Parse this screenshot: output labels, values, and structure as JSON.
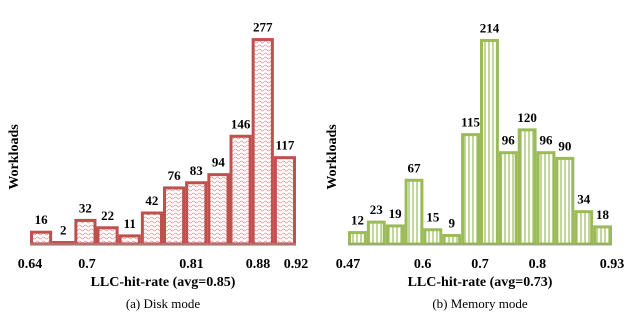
{
  "chart_data": [
    {
      "type": "histogram",
      "caption": "(a) Disk mode",
      "xlabel": "LLC-hit-rate (avg=0.85)",
      "ylabel": "Workloads",
      "color": "#c0504d",
      "pattern": "wave",
      "bins": [
        0.64,
        0.6633,
        0.6867,
        0.71,
        0.7333,
        0.7567,
        0.78,
        0.8033,
        0.8267,
        0.85,
        0.8733,
        0.8967,
        0.92
      ],
      "values": [
        16,
        2,
        32,
        22,
        11,
        42,
        76,
        83,
        94,
        146,
        277,
        117
      ],
      "xlim": [
        0.64,
        0.92
      ],
      "xticks": [
        0.64,
        0.7,
        0.81,
        0.88,
        0.92
      ],
      "ylim": [
        0,
        290
      ]
    },
    {
      "type": "histogram",
      "caption": "(b) Memory mode",
      "xlabel": "LLC-hit-rate (avg=0.73)",
      "ylabel": "Workloads",
      "color": "#9bbb59",
      "pattern": "stripes",
      "bins": [
        0.47,
        0.5029,
        0.5357,
        0.5686,
        0.6014,
        0.6343,
        0.6671,
        0.7,
        0.7329,
        0.7657,
        0.7986,
        0.8314,
        0.8643,
        0.8971,
        0.93
      ],
      "values": [
        12,
        23,
        19,
        67,
        15,
        9,
        115,
        214,
        96,
        120,
        96,
        90,
        34,
        18
      ],
      "xlim": [
        0.47,
        0.93
      ],
      "xticks": [
        0.47,
        0.6,
        0.7,
        0.8,
        0.93
      ],
      "ylim": [
        0,
        225
      ]
    }
  ]
}
